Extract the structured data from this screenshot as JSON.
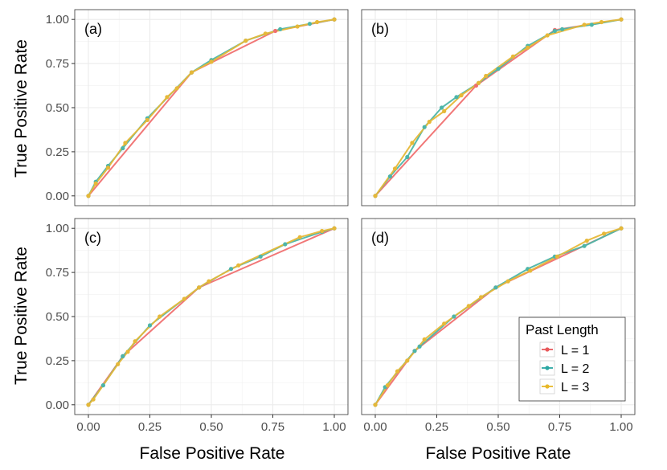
{
  "chart_data": {
    "type": "line",
    "layout": "2x2 facet grid",
    "xlabel": "False Positive Rate",
    "ylabel": "True Positive Rate",
    "xlim": [
      0,
      1
    ],
    "ylim": [
      0,
      1
    ],
    "grid": true,
    "x_ticks": [
      "0.00",
      "0.25",
      "0.50",
      "0.75",
      "1.00"
    ],
    "y_ticks": [
      "0.00",
      "0.25",
      "0.50",
      "0.75",
      "1.00"
    ],
    "legend": {
      "title": "Past Length",
      "position": "bottom-right inside panel (d)",
      "entries": [
        {
          "label": "L = 1",
          "color": "#E8595B"
        },
        {
          "label": "L = 2",
          "color": "#2BA7A3"
        },
        {
          "label": "L = 3",
          "color": "#E8B829"
        }
      ]
    },
    "panels": [
      {
        "label": "(a)",
        "series": [
          {
            "name": "L = 1",
            "color": "#F07070",
            "points": [
              [
                0,
                0
              ],
              [
                0.42,
                0.7
              ],
              [
                0.76,
                0.935
              ],
              [
                1,
                1
              ]
            ]
          },
          {
            "name": "L = 2",
            "color": "#4DB5A8",
            "points": [
              [
                0,
                0
              ],
              [
                0.03,
                0.08
              ],
              [
                0.08,
                0.17
              ],
              [
                0.14,
                0.27
              ],
              [
                0.24,
                0.44
              ],
              [
                0.42,
                0.7
              ],
              [
                0.5,
                0.77
              ],
              [
                0.64,
                0.88
              ],
              [
                0.78,
                0.945
              ],
              [
                0.9,
                0.975
              ],
              [
                1,
                1
              ]
            ]
          },
          {
            "name": "L = 3",
            "color": "#E6B838",
            "points": [
              [
                0,
                0
              ],
              [
                0.03,
                0.07
              ],
              [
                0.08,
                0.16
              ],
              [
                0.15,
                0.3
              ],
              [
                0.24,
                0.43
              ],
              [
                0.32,
                0.56
              ],
              [
                0.36,
                0.61
              ],
              [
                0.42,
                0.7
              ],
              [
                0.5,
                0.76
              ],
              [
                0.64,
                0.88
              ],
              [
                0.72,
                0.92
              ],
              [
                0.85,
                0.96
              ],
              [
                0.93,
                0.985
              ],
              [
                1,
                1
              ]
            ]
          }
        ]
      },
      {
        "label": "(b)",
        "series": [
          {
            "name": "L = 1",
            "color": "#F07070",
            "points": [
              [
                0,
                0
              ],
              [
                0.41,
                0.625
              ],
              [
                0.73,
                0.94
              ],
              [
                1,
                1
              ]
            ]
          },
          {
            "name": "L = 2",
            "color": "#4DB5A8",
            "points": [
              [
                0,
                0
              ],
              [
                0.06,
                0.11
              ],
              [
                0.13,
                0.22
              ],
              [
                0.2,
                0.39
              ],
              [
                0.27,
                0.5
              ],
              [
                0.33,
                0.56
              ],
              [
                0.42,
                0.64
              ],
              [
                0.5,
                0.72
              ],
              [
                0.62,
                0.85
              ],
              [
                0.73,
                0.935
              ],
              [
                0.76,
                0.945
              ],
              [
                0.88,
                0.97
              ],
              [
                1,
                1
              ]
            ]
          },
          {
            "name": "L = 3",
            "color": "#E6B838",
            "points": [
              [
                0,
                0
              ],
              [
                0.08,
                0.155
              ],
              [
                0.15,
                0.3
              ],
              [
                0.22,
                0.42
              ],
              [
                0.28,
                0.48
              ],
              [
                0.35,
                0.57
              ],
              [
                0.42,
                0.64
              ],
              [
                0.45,
                0.68
              ],
              [
                0.56,
                0.79
              ],
              [
                0.62,
                0.84
              ],
              [
                0.7,
                0.91
              ],
              [
                0.85,
                0.97
              ],
              [
                0.92,
                0.985
              ],
              [
                1,
                1
              ]
            ]
          }
        ]
      },
      {
        "label": "(c)",
        "series": [
          {
            "name": "L = 1",
            "color": "#F07070",
            "points": [
              [
                0,
                0
              ],
              [
                0.14,
                0.275
              ],
              [
                0.45,
                0.665
              ],
              [
                1,
                1
              ]
            ]
          },
          {
            "name": "L = 2",
            "color": "#4DB5A8",
            "points": [
              [
                0,
                0
              ],
              [
                0.06,
                0.11
              ],
              [
                0.14,
                0.275
              ],
              [
                0.25,
                0.45
              ],
              [
                0.45,
                0.665
              ],
              [
                0.58,
                0.77
              ],
              [
                0.7,
                0.84
              ],
              [
                0.8,
                0.91
              ],
              [
                0.95,
                0.98
              ],
              [
                1,
                1
              ]
            ]
          },
          {
            "name": "L = 3",
            "color": "#E6B838",
            "points": [
              [
                0,
                0
              ],
              [
                0.02,
                0.03
              ],
              [
                0.12,
                0.23
              ],
              [
                0.16,
                0.3
              ],
              [
                0.19,
                0.36
              ],
              [
                0.29,
                0.5
              ],
              [
                0.39,
                0.6
              ],
              [
                0.45,
                0.665
              ],
              [
                0.49,
                0.7
              ],
              [
                0.61,
                0.79
              ],
              [
                0.86,
                0.95
              ],
              [
                0.95,
                0.985
              ],
              [
                1,
                1
              ]
            ]
          }
        ]
      },
      {
        "label": "(d)",
        "series": [
          {
            "name": "L = 1",
            "color": "#F07070",
            "points": [
              [
                0,
                0
              ],
              [
                0.16,
                0.305
              ],
              [
                0.49,
                0.665
              ],
              [
                1,
                1
              ]
            ]
          },
          {
            "name": "L = 2",
            "color": "#4DB5A8",
            "points": [
              [
                0,
                0
              ],
              [
                0.04,
                0.1
              ],
              [
                0.16,
                0.305
              ],
              [
                0.18,
                0.33
              ],
              [
                0.32,
                0.5
              ],
              [
                0.49,
                0.665
              ],
              [
                0.62,
                0.77
              ],
              [
                0.73,
                0.84
              ],
              [
                0.85,
                0.9
              ],
              [
                1,
                1
              ]
            ]
          },
          {
            "name": "L = 3",
            "color": "#E6B838",
            "points": [
              [
                0,
                0
              ],
              [
                0.05,
                0.11
              ],
              [
                0.09,
                0.19
              ],
              [
                0.13,
                0.25
              ],
              [
                0.2,
                0.37
              ],
              [
                0.28,
                0.46
              ],
              [
                0.38,
                0.56
              ],
              [
                0.43,
                0.61
              ],
              [
                0.54,
                0.7
              ],
              [
                0.63,
                0.76
              ],
              [
                0.74,
                0.84
              ],
              [
                0.86,
                0.93
              ],
              [
                0.93,
                0.97
              ],
              [
                1,
                1
              ]
            ]
          }
        ]
      }
    ]
  }
}
